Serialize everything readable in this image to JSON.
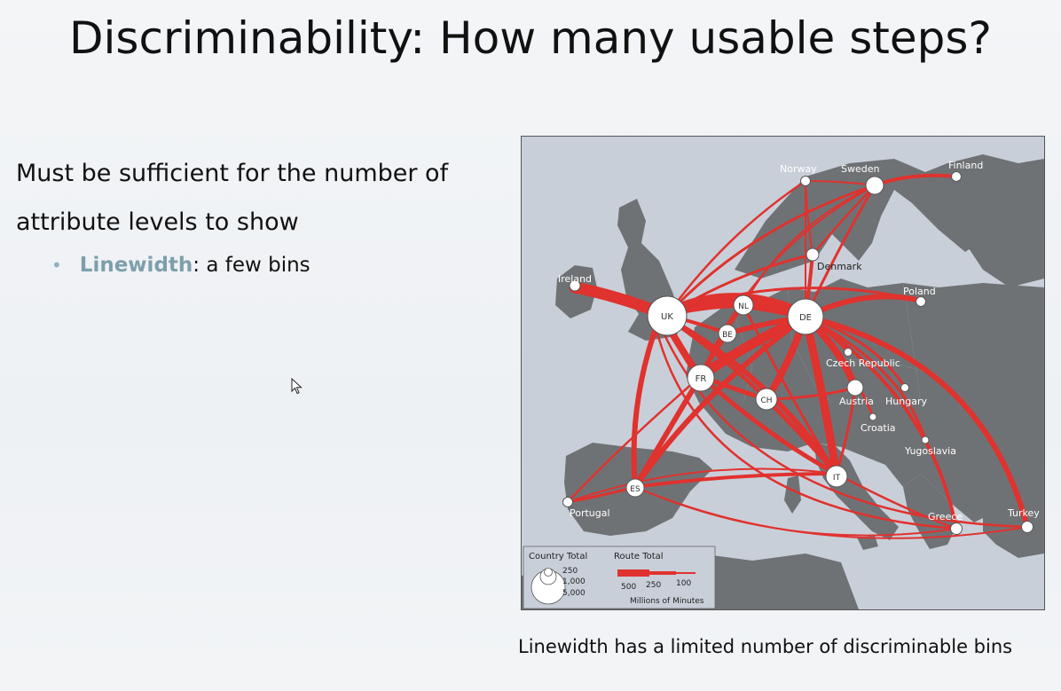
{
  "slide": {
    "title": "Discriminability: How many usable steps?",
    "body_line1": "Must be sufficient for the number of",
    "body_line2": "attribute levels to show",
    "bullet_keyword": "Linewidth",
    "bullet_rest": ": a few bins",
    "caption": "Linewidth has a limited number of discriminable bins"
  },
  "map": {
    "countries": {
      "uk": "UK",
      "de": "DE",
      "nl": "NL",
      "be": "BE",
      "fr": "FR",
      "ch": "CH",
      "it": "IT",
      "es": "ES",
      "norway": "Norway",
      "sweden": "Sweden",
      "finland": "Finland",
      "denmark": "Denmark",
      "ireland": "Ireland",
      "poland": "Poland",
      "czech": "Czech Republic",
      "austria": "Austria",
      "hungary": "Hungary",
      "croatia": "Croatia",
      "yugoslavia": "Yugoslavia",
      "portugal": "Portugal",
      "greece": "Greece",
      "turkey": "Turkey"
    },
    "legend": {
      "country_total_title": "Country Total",
      "country_total_values": [
        "250",
        "1,000",
        "5,000"
      ],
      "route_total_title": "Route Total",
      "route_total_values": [
        "500",
        "250",
        "100"
      ],
      "units": "Millions of Minutes"
    },
    "colors": {
      "route": "#e0322e",
      "land": "#6f7275",
      "sea": "#c9cfd9"
    }
  }
}
